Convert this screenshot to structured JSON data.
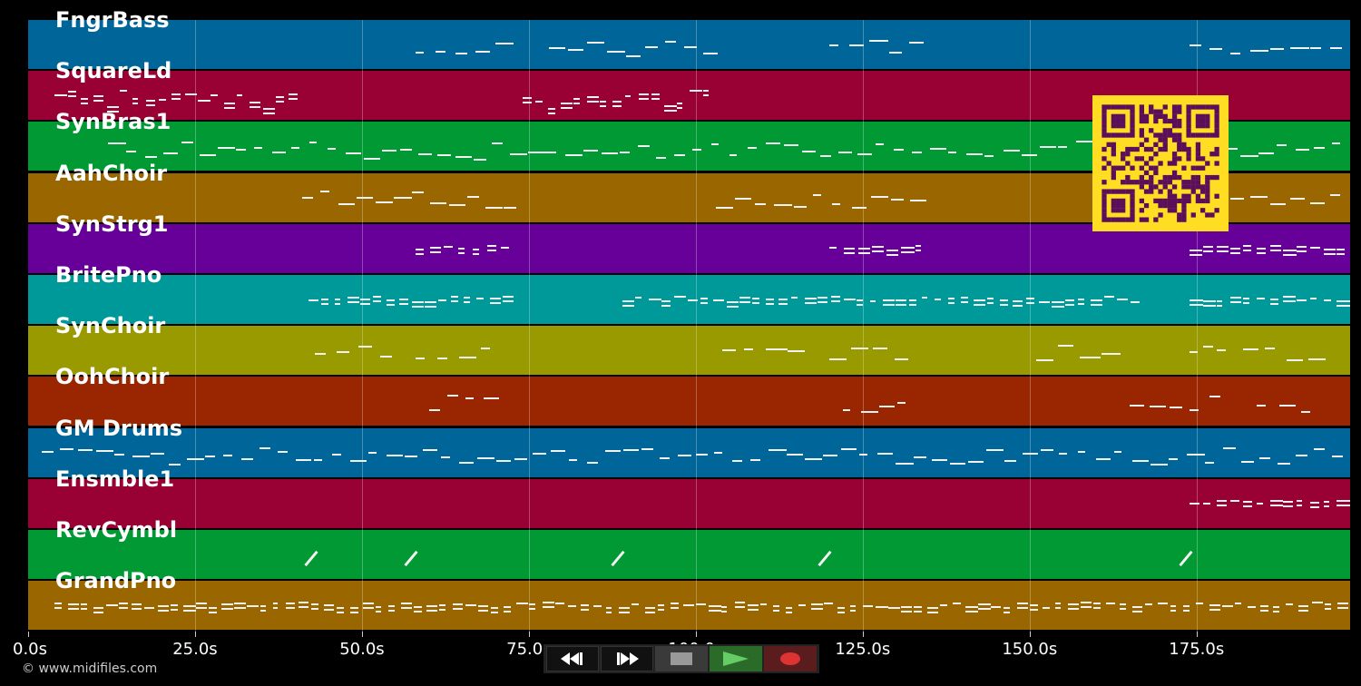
{
  "tracks": [
    {
      "name": "FngrBass",
      "color": "#006699"
    },
    {
      "name": "SquareLd",
      "color": "#990033"
    },
    {
      "name": "SynBras1",
      "color": "#009933"
    },
    {
      "name": "AahChoir",
      "color": "#996600"
    },
    {
      "name": "SynStrg1",
      "color": "#660099"
    },
    {
      "name": "BritePno",
      "color": "#009999"
    },
    {
      "name": "SynChoir",
      "color": "#999900"
    },
    {
      "name": "OohChoir",
      "color": "#992600"
    },
    {
      "name": "GM Drums",
      "color": "#006699"
    },
    {
      "name": "Ensmble1",
      "color": "#990033"
    },
    {
      "name": "RevCymbl",
      "color": "#009933"
    },
    {
      "name": "GrandPno",
      "color": "#996600"
    }
  ],
  "timeline": {
    "duration_s": 198,
    "ticks": [
      "0.0s",
      "25.0s",
      "50.0s",
      "75.0s",
      "100.0s",
      "125.0s",
      "150.0s",
      "175.0s"
    ],
    "tick_values": [
      0,
      25,
      50,
      75,
      100,
      125,
      150,
      175
    ]
  },
  "note_regions": [
    [
      [
        58,
        73
      ],
      [
        78,
        104
      ],
      [
        120,
        135
      ],
      [
        174,
        198
      ]
    ],
    [
      [
        4,
        41
      ],
      [
        74,
        103
      ]
    ],
    [
      [
        12,
        198
      ]
    ],
    [
      [
        41,
        74
      ],
      [
        103,
        135
      ],
      [
        180,
        198
      ]
    ],
    [
      [
        58,
        73
      ],
      [
        120,
        135
      ],
      [
        174,
        198
      ]
    ],
    [
      [
        42,
        73
      ],
      [
        89,
        167
      ],
      [
        174,
        198
      ]
    ],
    [
      [
        43,
        56
      ],
      [
        58,
        71
      ],
      [
        104,
        117
      ],
      [
        120,
        133
      ],
      [
        151,
        164
      ],
      [
        174,
        180
      ],
      [
        182,
        195
      ]
    ],
    [
      [
        60,
        71
      ],
      [
        122,
        133
      ],
      [
        165,
        180
      ],
      [
        184,
        194
      ]
    ],
    [
      [
        2,
        198
      ]
    ],
    [
      [
        174,
        198
      ]
    ],
    [
      [
        41,
        43
      ],
      [
        56,
        58
      ],
      [
        87,
        89
      ],
      [
        118,
        120
      ],
      [
        172,
        174
      ]
    ],
    [
      [
        4,
        198
      ]
    ]
  ],
  "footer": {
    "copyright": "© www.midifiles.com"
  },
  "transport": {
    "buttons": [
      {
        "name": "rewind-button",
        "icon": "rewind-icon"
      },
      {
        "name": "fast-forward-button",
        "icon": "fast-forward-icon"
      },
      {
        "name": "stop-button",
        "icon": "stop-icon"
      },
      {
        "name": "play-button",
        "icon": "play-icon"
      },
      {
        "name": "record-button",
        "icon": "record-icon"
      }
    ],
    "colors": {
      "stop": "#999999",
      "play": "#66cc66",
      "record": "#dd3333"
    }
  },
  "qr": {
    "fg": "#5a0f5a",
    "bg": "#ffdd22",
    "icon": "qr-code-icon"
  }
}
